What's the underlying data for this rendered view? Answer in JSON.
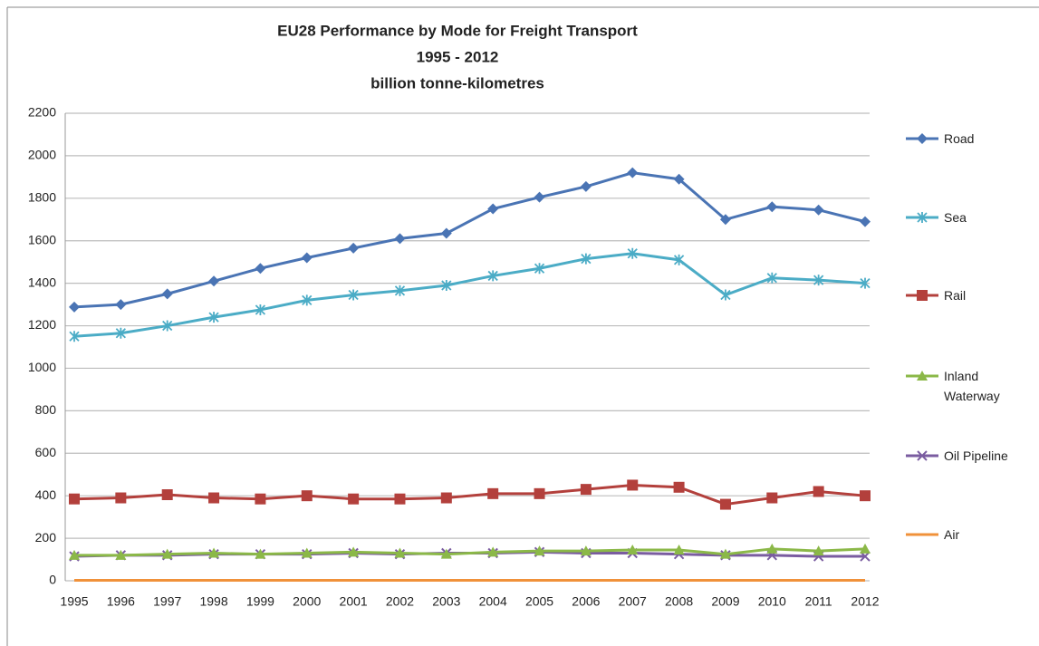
{
  "chart_data": {
    "type": "line",
    "title": "EU28 Performance by Mode for Freight Transport",
    "subtitle": "1995 - 2012",
    "units": "billion tonne-kilometres",
    "categories": [
      "1995",
      "1996",
      "1997",
      "1998",
      "1999",
      "2000",
      "2001",
      "2002",
      "2003",
      "2004",
      "2005",
      "2006",
      "2007",
      "2008",
      "2009",
      "2010",
      "2011",
      "2012"
    ],
    "ylim": [
      0,
      2200
    ],
    "yticks": [
      0,
      200,
      400,
      600,
      800,
      1000,
      1200,
      1400,
      1600,
      1800,
      2000,
      2200
    ],
    "grid": true,
    "legend": "right",
    "series": [
      {
        "name": "Road",
        "color": "#4a74b4",
        "marker": "diamond",
        "values": [
          1288,
          1300,
          1350,
          1410,
          1470,
          1520,
          1565,
          1610,
          1635,
          1750,
          1805,
          1855,
          1920,
          1890,
          1700,
          1760,
          1745,
          1690
        ]
      },
      {
        "name": "Sea",
        "color": "#4bacc6",
        "marker": "asterisk",
        "values": [
          1150,
          1165,
          1200,
          1240,
          1275,
          1320,
          1345,
          1365,
          1390,
          1435,
          1470,
          1515,
          1540,
          1510,
          1345,
          1425,
          1415,
          1400
        ]
      },
      {
        "name": "Rail",
        "color": "#b3403c",
        "marker": "square",
        "values": [
          385,
          390,
          405,
          390,
          385,
          400,
          385,
          385,
          390,
          410,
          410,
          430,
          450,
          440,
          360,
          390,
          420,
          400
        ]
      },
      {
        "name": "Inland Waterway",
        "color": "#8bb848",
        "marker": "triangle",
        "values": [
          120,
          120,
          125,
          130,
          125,
          130,
          135,
          130,
          125,
          135,
          140,
          140,
          145,
          145,
          125,
          150,
          140,
          150
        ]
      },
      {
        "name": "Oil Pipeline",
        "color": "#7a5ca0",
        "marker": "x",
        "values": [
          115,
          120,
          120,
          125,
          125,
          125,
          130,
          125,
          130,
          130,
          135,
          130,
          130,
          125,
          120,
          120,
          115,
          115
        ]
      },
      {
        "name": "Air",
        "color": "#f0913a",
        "marker": "none",
        "values": [
          2,
          2,
          2,
          2,
          2,
          2,
          2,
          2,
          2,
          2,
          2,
          2,
          2,
          2,
          2,
          2,
          2,
          2
        ]
      }
    ]
  }
}
